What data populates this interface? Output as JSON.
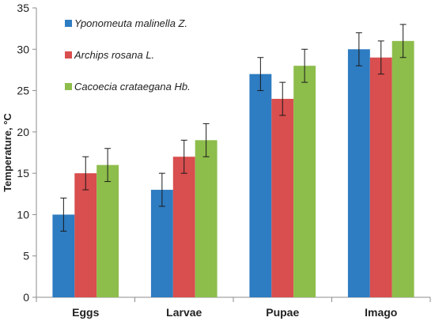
{
  "chart_data": {
    "type": "bar",
    "title": "",
    "xlabel": "",
    "ylabel": "Temperature, °C",
    "ylim": [
      0,
      35
    ],
    "yticks": [
      0,
      5,
      10,
      15,
      20,
      25,
      30,
      35
    ],
    "categories": [
      "Eggs",
      "Larvae",
      "Pupae",
      "Imago"
    ],
    "grid": false,
    "legend_position": "top-left",
    "error_bars": true,
    "series": [
      {
        "name": "Yponomeuta malinella Z.",
        "color": "#2E7CC2",
        "values": [
          10,
          13,
          27,
          30
        ],
        "errors": [
          2,
          2,
          2,
          2
        ]
      },
      {
        "name": "Archips rosana L.",
        "color": "#D94E4E",
        "values": [
          15,
          17,
          24,
          29
        ],
        "errors": [
          2,
          2,
          2,
          2
        ]
      },
      {
        "name": "Cacoecia crataegana Hb.",
        "color": "#8DBD4B",
        "values": [
          16,
          19,
          28,
          31
        ],
        "errors": [
          2,
          2,
          2,
          2
        ]
      }
    ]
  }
}
